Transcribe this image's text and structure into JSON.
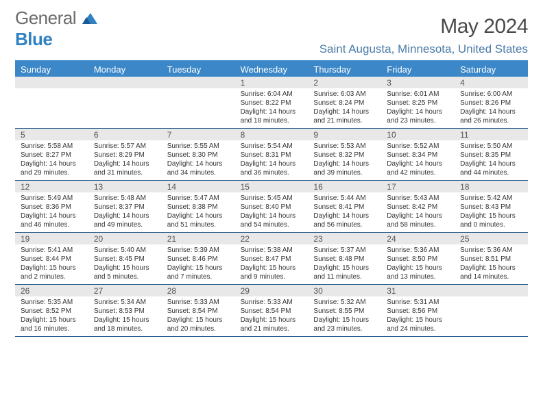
{
  "brand": {
    "part1": "General",
    "part2": "Blue"
  },
  "title": "May 2024",
  "location": "Saint Augusta, Minnesota, United States",
  "header_bg": "#3b87c8",
  "header_fg": "#ffffff",
  "daynum_bg": "#e8e8e8",
  "border_color": "#2b5f8f",
  "weekdays": [
    "Sunday",
    "Monday",
    "Tuesday",
    "Wednesday",
    "Thursday",
    "Friday",
    "Saturday"
  ],
  "weeks": [
    [
      {
        "blank": true
      },
      {
        "blank": true
      },
      {
        "blank": true
      },
      {
        "n": "1",
        "sr": "6:04 AM",
        "ss": "8:22 PM",
        "dl": "14 hours and 18 minutes."
      },
      {
        "n": "2",
        "sr": "6:03 AM",
        "ss": "8:24 PM",
        "dl": "14 hours and 21 minutes."
      },
      {
        "n": "3",
        "sr": "6:01 AM",
        "ss": "8:25 PM",
        "dl": "14 hours and 23 minutes."
      },
      {
        "n": "4",
        "sr": "6:00 AM",
        "ss": "8:26 PM",
        "dl": "14 hours and 26 minutes."
      }
    ],
    [
      {
        "n": "5",
        "sr": "5:58 AM",
        "ss": "8:27 PM",
        "dl": "14 hours and 29 minutes."
      },
      {
        "n": "6",
        "sr": "5:57 AM",
        "ss": "8:29 PM",
        "dl": "14 hours and 31 minutes."
      },
      {
        "n": "7",
        "sr": "5:55 AM",
        "ss": "8:30 PM",
        "dl": "14 hours and 34 minutes."
      },
      {
        "n": "8",
        "sr": "5:54 AM",
        "ss": "8:31 PM",
        "dl": "14 hours and 36 minutes."
      },
      {
        "n": "9",
        "sr": "5:53 AM",
        "ss": "8:32 PM",
        "dl": "14 hours and 39 minutes."
      },
      {
        "n": "10",
        "sr": "5:52 AM",
        "ss": "8:34 PM",
        "dl": "14 hours and 42 minutes."
      },
      {
        "n": "11",
        "sr": "5:50 AM",
        "ss": "8:35 PM",
        "dl": "14 hours and 44 minutes."
      }
    ],
    [
      {
        "n": "12",
        "sr": "5:49 AM",
        "ss": "8:36 PM",
        "dl": "14 hours and 46 minutes."
      },
      {
        "n": "13",
        "sr": "5:48 AM",
        "ss": "8:37 PM",
        "dl": "14 hours and 49 minutes."
      },
      {
        "n": "14",
        "sr": "5:47 AM",
        "ss": "8:38 PM",
        "dl": "14 hours and 51 minutes."
      },
      {
        "n": "15",
        "sr": "5:45 AM",
        "ss": "8:40 PM",
        "dl": "14 hours and 54 minutes."
      },
      {
        "n": "16",
        "sr": "5:44 AM",
        "ss": "8:41 PM",
        "dl": "14 hours and 56 minutes."
      },
      {
        "n": "17",
        "sr": "5:43 AM",
        "ss": "8:42 PM",
        "dl": "14 hours and 58 minutes."
      },
      {
        "n": "18",
        "sr": "5:42 AM",
        "ss": "8:43 PM",
        "dl": "15 hours and 0 minutes."
      }
    ],
    [
      {
        "n": "19",
        "sr": "5:41 AM",
        "ss": "8:44 PM",
        "dl": "15 hours and 2 minutes."
      },
      {
        "n": "20",
        "sr": "5:40 AM",
        "ss": "8:45 PM",
        "dl": "15 hours and 5 minutes."
      },
      {
        "n": "21",
        "sr": "5:39 AM",
        "ss": "8:46 PM",
        "dl": "15 hours and 7 minutes."
      },
      {
        "n": "22",
        "sr": "5:38 AM",
        "ss": "8:47 PM",
        "dl": "15 hours and 9 minutes."
      },
      {
        "n": "23",
        "sr": "5:37 AM",
        "ss": "8:48 PM",
        "dl": "15 hours and 11 minutes."
      },
      {
        "n": "24",
        "sr": "5:36 AM",
        "ss": "8:50 PM",
        "dl": "15 hours and 13 minutes."
      },
      {
        "n": "25",
        "sr": "5:36 AM",
        "ss": "8:51 PM",
        "dl": "15 hours and 14 minutes."
      }
    ],
    [
      {
        "n": "26",
        "sr": "5:35 AM",
        "ss": "8:52 PM",
        "dl": "15 hours and 16 minutes."
      },
      {
        "n": "27",
        "sr": "5:34 AM",
        "ss": "8:53 PM",
        "dl": "15 hours and 18 minutes."
      },
      {
        "n": "28",
        "sr": "5:33 AM",
        "ss": "8:54 PM",
        "dl": "15 hours and 20 minutes."
      },
      {
        "n": "29",
        "sr": "5:33 AM",
        "ss": "8:54 PM",
        "dl": "15 hours and 21 minutes."
      },
      {
        "n": "30",
        "sr": "5:32 AM",
        "ss": "8:55 PM",
        "dl": "15 hours and 23 minutes."
      },
      {
        "n": "31",
        "sr": "5:31 AM",
        "ss": "8:56 PM",
        "dl": "15 hours and 24 minutes."
      },
      {
        "blank": true
      }
    ]
  ],
  "labels": {
    "sunrise": "Sunrise: ",
    "sunset": "Sunset: ",
    "daylight": "Daylight: "
  }
}
